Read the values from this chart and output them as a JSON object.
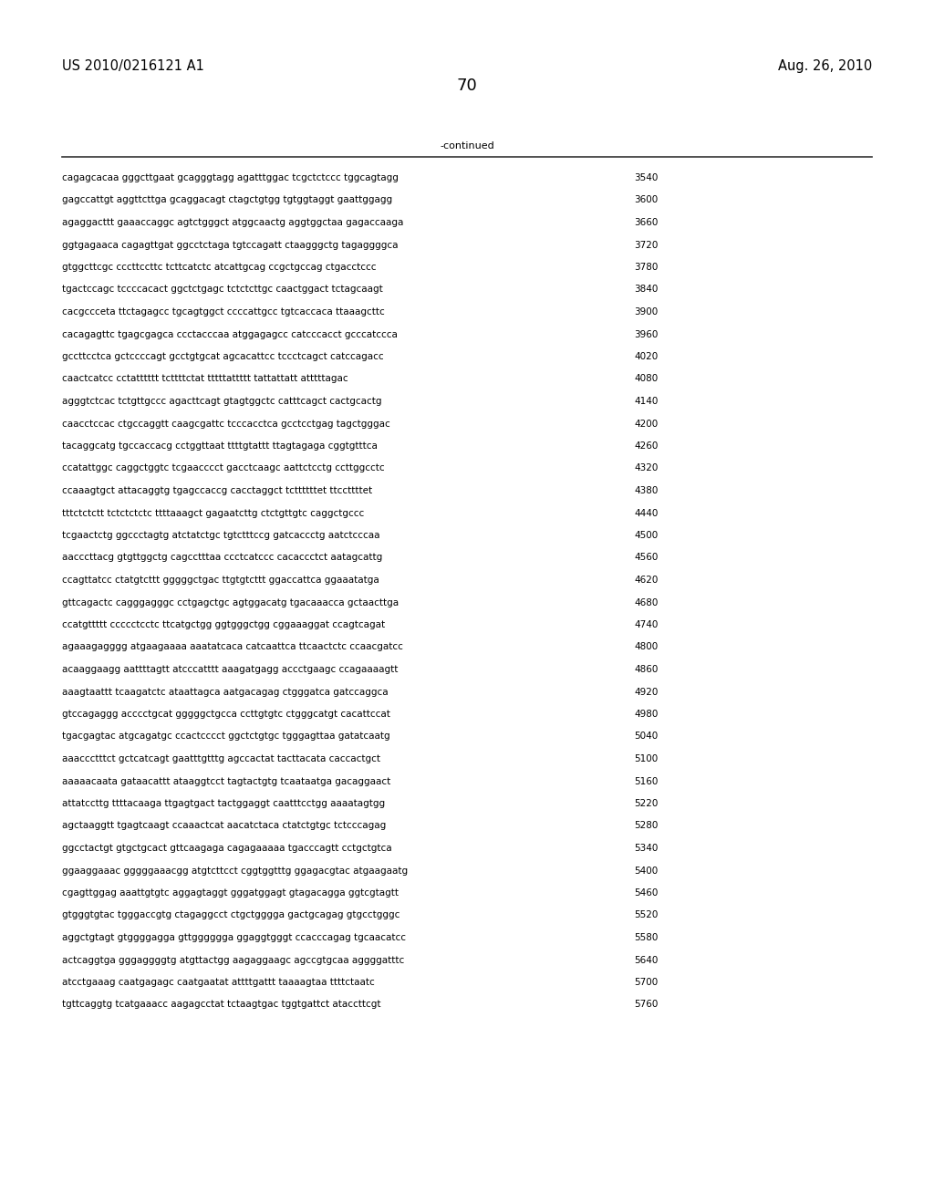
{
  "header_left": "US 2010/0216121 A1",
  "header_right": "Aug. 26, 2010",
  "page_number": "70",
  "continued_label": "-continued",
  "background_color": "#ffffff",
  "text_color": "#000000",
  "font_size_header": 10.5,
  "font_size_body": 7.5,
  "font_size_page": 13,
  "sequence_lines": [
    [
      "cagagcacaa gggcttgaat gcagggtagg agatttggac tcgctctccc tggcagtagg",
      "3540"
    ],
    [
      "gagccattgt aggttcttga gcaggacagt ctagctgtgg tgtggtaggt gaattggagg",
      "3600"
    ],
    [
      "agaggacttt gaaaccaggc agtctgggct atggcaactg aggtggctaa gagaccaaga",
      "3660"
    ],
    [
      "ggtgagaaca cagagttgat ggcctctaga tgtccagatt ctaagggctg tagaggggca",
      "3720"
    ],
    [
      "gtggcttcgc cccttccttc tcttcatctc atcattgcag ccgctgccag ctgacctccc",
      "3780"
    ],
    [
      "tgactccagc tccccacact ggctctgagc tctctcttgc caactggact tctagcaagt",
      "3840"
    ],
    [
      "cacgccceta ttctagagcc tgcagtggct ccccattgcc tgtcaccaca ttaaagcttc",
      "3900"
    ],
    [
      "cacagagttc tgagcgagca ccctacccaa atggagagcc catcccacct gcccatccca",
      "3960"
    ],
    [
      "gccttcctca gctccccagt gcctgtgcat agcacattcc tccctcagct catccagacc",
      "4020"
    ],
    [
      "caactcatcc cctatttttt tcttttctat tttttattttt tattattatt atttttagac",
      "4080"
    ],
    [
      "agggtctcac tctgttgccc agacttcagt gtagtggctc catttcagct cactgcactg",
      "4140"
    ],
    [
      "caacctccac ctgccaggtt caagcgattc tcccacctca gcctcctgag tagctgggac",
      "4200"
    ],
    [
      "tacaggcatg tgccaccacg cctggttaat ttttgtattt ttagtagaga cggtgtttca",
      "4260"
    ],
    [
      "ccatattggc caggctggtc tcgaacccct gacctcaagc aattctcctg ccttggcctc",
      "4320"
    ],
    [
      "ccaaagtgct attacaggtg tgagccaccg cacctaggct tcttttttet ttccttttet",
      "4380"
    ],
    [
      "tttctctctt tctctctctc ttttaaagct gagaatcttg ctctgttgtc caggctgccc",
      "4440"
    ],
    [
      "tcgaactctg ggccctagtg atctatctgc tgtctttccg gatcaccctg aatctcccaa",
      "4500"
    ],
    [
      "aacccttacg gtgttggctg cagcctttaa ccctcatccc cacaccctct aatagcattg",
      "4560"
    ],
    [
      "ccagttatcc ctatgtcttt gggggctgac ttgtgtcttt ggaccattca ggaaatatga",
      "4620"
    ],
    [
      "gttcagactc cagggagggc cctgagctgc agtggacatg tgacaaacca gctaacttga",
      "4680"
    ],
    [
      "ccatgttttt ccccctcctc ttcatgctgg ggtgggctgg cggaaaggat ccagtcagat",
      "4740"
    ],
    [
      "agaaagagggg atgaagaaaa aaatatcaca catcaattca ttcaactctc ccaacgatcc",
      "4800"
    ],
    [
      "acaaggaagg aattttagtt atcccatttt aaagatgagg accctgaagc ccagaaaagtt",
      "4860"
    ],
    [
      "aaagtaattt tcaagatctc ataattagca aatgacagag ctgggatca gatccaggca",
      "4920"
    ],
    [
      "gtccagaggg acccctgcat gggggctgcca ccttgtgtc ctgggcatgt cacattccat",
      "4980"
    ],
    [
      "tgacgagtac atgcagatgc ccactcccct ggctctgtgc tgggagttaa gatatcaatg",
      "5040"
    ],
    [
      "aaaccctttct gctcatcagt gaatttgtttg agccactat tacttacata caccactgct",
      "5100"
    ],
    [
      "aaaaacaata gataacattt ataaggtcct tagtactgtg tcaataatga gacaggaact",
      "5160"
    ],
    [
      "attatccttg ttttacaaga ttgagtgact tactggaggt caatttcctgg aaaatagtgg",
      "5220"
    ],
    [
      "agctaaggtt tgagtcaagt ccaaactcat aacatctaca ctatctgtgc tctcccagag",
      "5280"
    ],
    [
      "ggcctactgt gtgctgcact gttcaagaga cagagaaaaa tgacccagtt cctgctgtca",
      "5340"
    ],
    [
      "ggaaggaaac gggggaaacgg atgtcttcct cggtggtttg ggagacgtac atgaagaatg",
      "5400"
    ],
    [
      "cgagttggag aaattgtgtc aggagtaggt gggatggagt gtagacagga ggtcgtagtt",
      "5460"
    ],
    [
      "gtgggtgtac tgggaccgtg ctagaggcct ctgctgggga gactgcagag gtgcctgggc",
      "5520"
    ],
    [
      "aggctgtagt gtggggagga gttgggggga ggaggtgggt ccacccagag tgcaacatcc",
      "5580"
    ],
    [
      "actcaggtga gggaggggtg atgttactgg aagaggaagc agccgtgcaa aggggatttc",
      "5640"
    ],
    [
      "atcctgaaag caatgagagc caatgaatat attttgattt taaaagtaa ttttctaatc",
      "5700"
    ],
    [
      "tgttcaggtg tcatgaaacc aagagcctat tctaagtgac tggtgattct ataccttcgt",
      "5760"
    ]
  ]
}
